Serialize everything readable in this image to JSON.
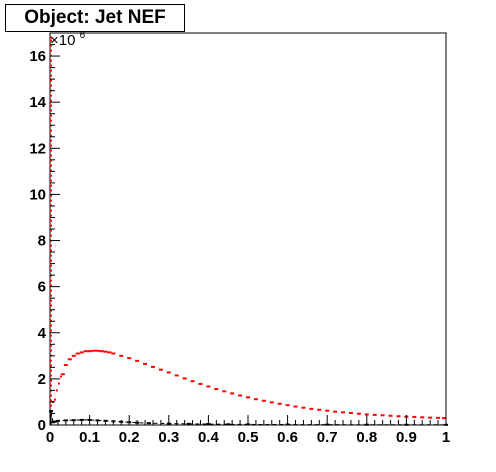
{
  "chart_data": {
    "type": "line",
    "title": "Object: Jet NEF",
    "xlabel": "",
    "ylabel": "",
    "y_multiplier_label": "×10",
    "y_multiplier_exponent": "6",
    "xlim": [
      0,
      1
    ],
    "ylim": [
      0,
      17
    ],
    "x_ticks": [
      0,
      0.1,
      0.2,
      0.3,
      0.4,
      0.5,
      0.6,
      0.7,
      0.8,
      0.9,
      1
    ],
    "x_tick_labels": [
      "0",
      "0.1",
      "0.2",
      "0.3",
      "0.4",
      "0.5",
      "0.6",
      "0.7",
      "0.8",
      "0.9",
      "1"
    ],
    "y_ticks": [
      0,
      2,
      4,
      6,
      8,
      10,
      12,
      14,
      16
    ],
    "y_tick_labels": [
      "0",
      "2",
      "4",
      "6",
      "8",
      "10",
      "12",
      "14",
      "16"
    ],
    "grid": false,
    "legend": "none",
    "series": [
      {
        "color": "#ff0000",
        "style": "histogram-markers",
        "x": [
          0.0025,
          0.0075,
          0.0125,
          0.0175,
          0.0225,
          0.0275,
          0.0325,
          0.04,
          0.05,
          0.06,
          0.07,
          0.08,
          0.09,
          0.1,
          0.11,
          0.12,
          0.13,
          0.14,
          0.15,
          0.16,
          0.18,
          0.2,
          0.22,
          0.24,
          0.26,
          0.28,
          0.3,
          0.32,
          0.34,
          0.36,
          0.38,
          0.4,
          0.42,
          0.44,
          0.46,
          0.48,
          0.5,
          0.52,
          0.54,
          0.56,
          0.58,
          0.6,
          0.62,
          0.64,
          0.66,
          0.68,
          0.7,
          0.72,
          0.74,
          0.76,
          0.78,
          0.8,
          0.82,
          0.84,
          0.86,
          0.88,
          0.9,
          0.92,
          0.94,
          0.96,
          0.98,
          0.995
        ],
        "values": [
          16.8,
          1.0,
          1.1,
          1.5,
          1.8,
          2.1,
          2.2,
          2.6,
          2.85,
          3.0,
          3.1,
          3.15,
          3.2,
          3.2,
          3.22,
          3.22,
          3.2,
          3.18,
          3.15,
          3.1,
          3.0,
          2.9,
          2.78,
          2.65,
          2.52,
          2.4,
          2.28,
          2.15,
          2.02,
          1.9,
          1.78,
          1.67,
          1.56,
          1.46,
          1.37,
          1.28,
          1.2,
          1.12,
          1.05,
          0.98,
          0.92,
          0.86,
          0.8,
          0.75,
          0.7,
          0.66,
          0.62,
          0.58,
          0.55,
          0.52,
          0.49,
          0.46,
          0.44,
          0.42,
          0.4,
          0.38,
          0.36,
          0.35,
          0.33,
          0.32,
          0.31,
          0.3
        ]
      },
      {
        "color": "#000000",
        "style": "histogram-markers",
        "x": [
          0.0025,
          0.0075,
          0.0125,
          0.02,
          0.04,
          0.06,
          0.08,
          0.1,
          0.12,
          0.14,
          0.16,
          0.18,
          0.2,
          0.22,
          0.25,
          0.3,
          0.35,
          0.4,
          0.45,
          0.5,
          0.6,
          0.7,
          0.8,
          0.9,
          1.0
        ],
        "values": [
          0.6,
          0.12,
          0.15,
          0.18,
          0.2,
          0.21,
          0.22,
          0.22,
          0.2,
          0.18,
          0.16,
          0.14,
          0.12,
          0.1,
          0.08,
          0.06,
          0.05,
          0.04,
          0.03,
          0.025,
          0.02,
          0.015,
          0.012,
          0.01,
          0.008
        ]
      }
    ]
  }
}
